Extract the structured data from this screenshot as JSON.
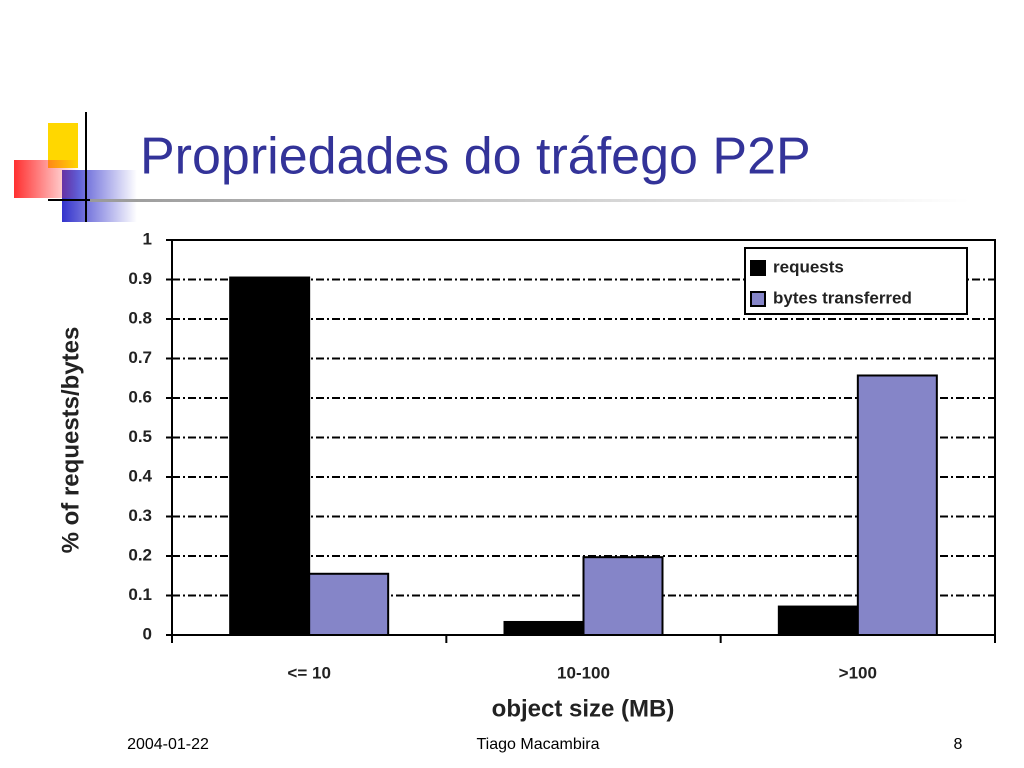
{
  "title": "Propriedades do tráfego P2P",
  "footer": {
    "date": "2004-01-22",
    "author": "Tiago Macambira",
    "page": "8"
  },
  "chart_data": {
    "type": "bar",
    "categories": [
      "<= 10",
      "10-100",
      ">100"
    ],
    "series": [
      {
        "name": "requests",
        "color": "#000000",
        "values": [
          0.905,
          0.033,
          0.072
        ]
      },
      {
        "name": "bytes transferred",
        "color": "#8585c8",
        "values": [
          0.155,
          0.197,
          0.657
        ]
      }
    ],
    "x_label": "object size (MB)",
    "y_label": "% of requests/bytes",
    "ylim": [
      0,
      1
    ],
    "yticks": [
      0,
      0.1,
      0.2,
      0.3,
      0.4,
      0.5,
      0.6,
      0.7,
      0.8,
      0.9,
      1
    ],
    "grid": true,
    "legend": "top-right"
  }
}
